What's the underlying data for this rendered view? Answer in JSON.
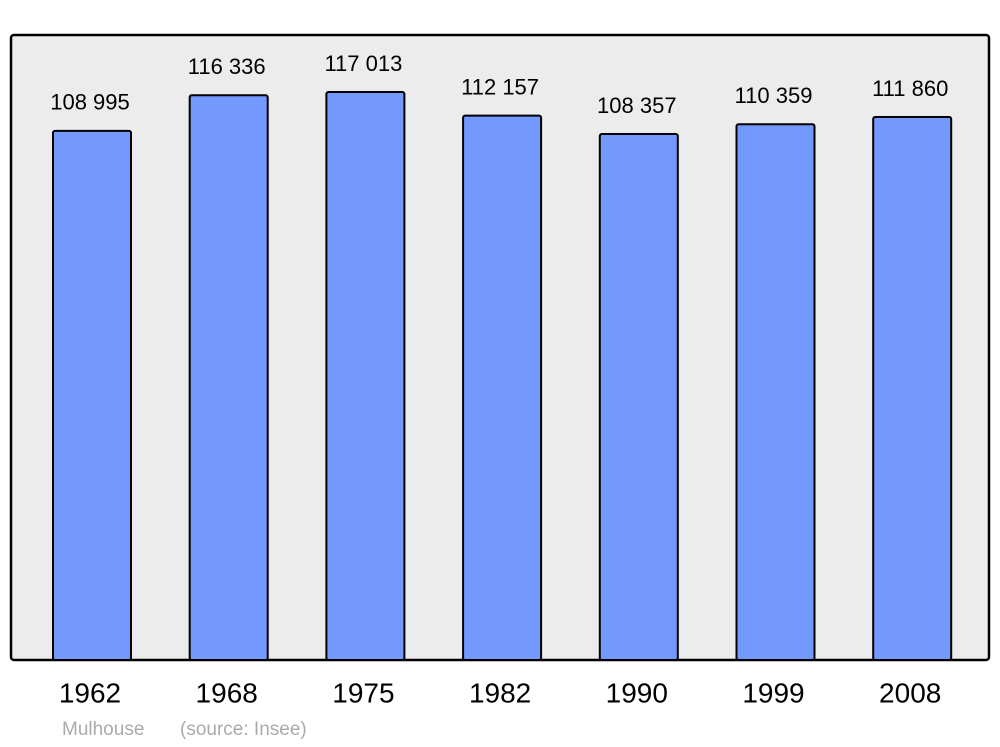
{
  "chart_data": {
    "type": "bar",
    "categories": [
      "1962",
      "1968",
      "1975",
      "1982",
      "1990",
      "1999",
      "2008"
    ],
    "values": [
      108995,
      116336,
      117013,
      112157,
      108357,
      110359,
      111860
    ],
    "value_labels": [
      "108 995",
      "116 336",
      "117 013",
      "112 157",
      "108 357",
      "110 359",
      "111 860"
    ],
    "color": "#7399ff",
    "caption": "Mulhouse",
    "source": "(source: Insee)"
  }
}
